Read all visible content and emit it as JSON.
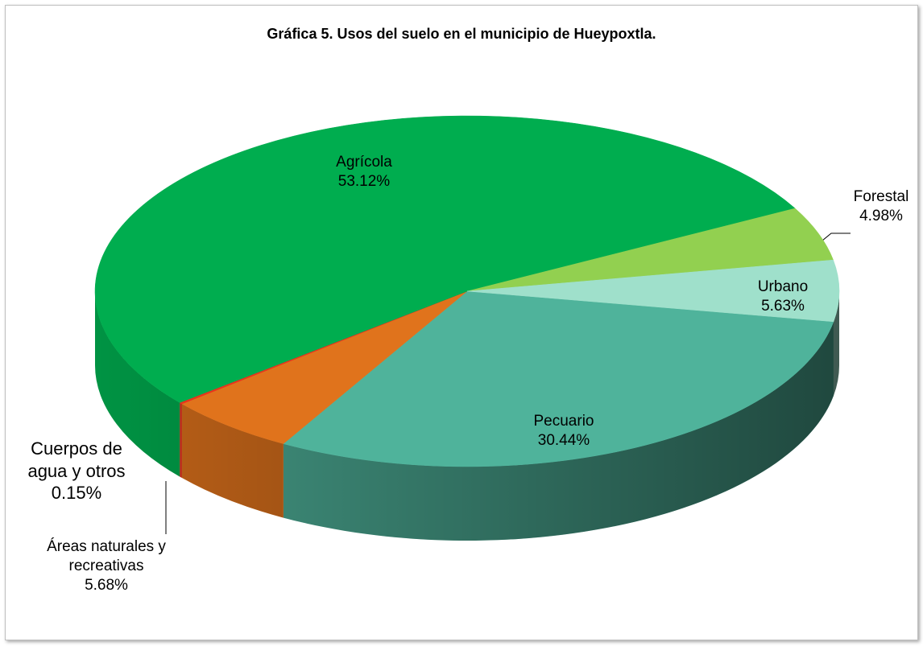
{
  "chart_data": {
    "type": "pie",
    "title": "Gráfica 5. Usos del suelo en el municipio de Hueypoxtla.",
    "categories": [
      "Pecuario",
      "Áreas naturales y recreativas",
      "Cuerpos de agua y otros",
      "Agrícola",
      "Forestal",
      "Urbano"
    ],
    "values": [
      30.44,
      5.68,
      0.15,
      53.12,
      4.98,
      5.63
    ],
    "value_labels": [
      "30.44%",
      "5.68%",
      "0.15%",
      "53.12%",
      "4.98%",
      "5.63%"
    ],
    "colors": [
      "#4fb39b",
      "#e0731c",
      "#e8341c",
      "#00ad4f",
      "#92d050",
      "#9fe0cb"
    ]
  }
}
